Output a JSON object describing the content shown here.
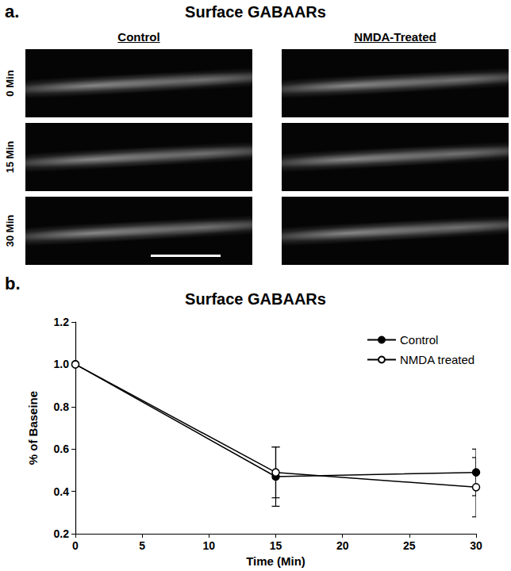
{
  "panel_a": {
    "label": "a.",
    "title": "Surface GABAARs",
    "columns": [
      "Control",
      "NMDA-Treated"
    ],
    "rows": [
      "0 Min",
      "15 Min",
      "30 Min"
    ]
  },
  "chart_data": {
    "type": "line",
    "title": "Surface GABAARs",
    "annotations": [
      "b."
    ],
    "x_label": "Time (Min)",
    "y_label": "% of Baseine",
    "x": [
      0,
      15,
      30
    ],
    "series": [
      {
        "name": "Control",
        "color": "#000000",
        "marker": "circle",
        "values": [
          1.0,
          0.47,
          0.49
        ],
        "errors": [
          0,
          0.14,
          0.11
        ]
      },
      {
        "name": "NMDA treated",
        "color": "#000000",
        "marker": "circle_open",
        "values": [
          1.0,
          0.49,
          0.42
        ],
        "errors": [
          0,
          0.12,
          0.14
        ]
      }
    ],
    "xlim": [
      0,
      30
    ],
    "xticks": [
      0,
      5,
      10,
      15,
      20,
      25,
      30
    ],
    "ylim": [
      0.2,
      1.2
    ],
    "yticks": [
      0.2,
      0.4,
      0.6,
      0.8,
      {
        "value": 1,
        "label": "1.0"
      },
      1.2
    ],
    "grid": false,
    "legend": "upper right"
  }
}
